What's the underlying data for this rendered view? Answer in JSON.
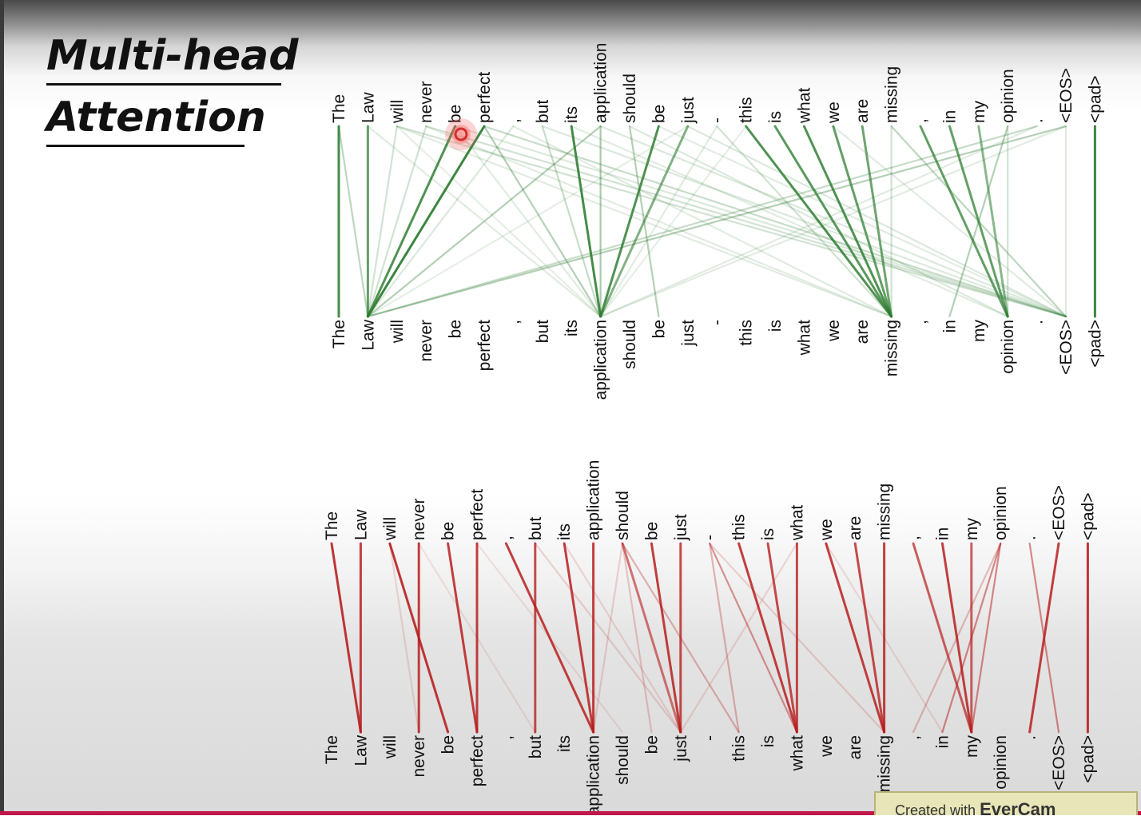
{
  "title": {
    "line1": "Multi-head",
    "line2": "Attention"
  },
  "tokens": [
    "The",
    "Law",
    "will",
    "never",
    "be",
    "perfect",
    ",",
    "but",
    "its",
    "application",
    "should",
    "be",
    "just",
    "-",
    "this",
    "is",
    "what",
    "we",
    "are",
    "missing",
    ",",
    "in",
    "my",
    "opinion",
    ".",
    "<EOS>",
    "<pad>"
  ],
  "colors": {
    "head_top": "#2e7d32",
    "head_bottom": "#b71c1c",
    "cursor": "#e53935"
  },
  "cursor_icon": "cursor-ring-icon",
  "heads": [
    {
      "name": "head-green",
      "color": "#2e7d32",
      "edges": [
        [
          0,
          0,
          0.9
        ],
        [
          0,
          1,
          0.3
        ],
        [
          1,
          1,
          0.75
        ],
        [
          2,
          1,
          0.2
        ],
        [
          3,
          1,
          0.2
        ],
        [
          4,
          1,
          0.85
        ],
        [
          5,
          1,
          0.95
        ],
        [
          5,
          9,
          0.35
        ],
        [
          6,
          1,
          0.15
        ],
        [
          7,
          9,
          0.25
        ],
        [
          8,
          9,
          0.9
        ],
        [
          9,
          1,
          0.35
        ],
        [
          9,
          9,
          0.4
        ],
        [
          10,
          11,
          0.35
        ],
        [
          11,
          9,
          0.85
        ],
        [
          12,
          9,
          0.6
        ],
        [
          13,
          19,
          0.2
        ],
        [
          14,
          19,
          0.85
        ],
        [
          15,
          19,
          0.8
        ],
        [
          16,
          19,
          0.85
        ],
        [
          17,
          19,
          0.75
        ],
        [
          18,
          19,
          0.7
        ],
        [
          19,
          19,
          0.2
        ],
        [
          19,
          25,
          0.3
        ],
        [
          20,
          23,
          0.75
        ],
        [
          21,
          23,
          0.75
        ],
        [
          22,
          23,
          0.55
        ],
        [
          23,
          21,
          0.35
        ],
        [
          23,
          23,
          0.2
        ],
        [
          24,
          1,
          0.25
        ],
        [
          25,
          1,
          0.35
        ],
        [
          25,
          25,
          0.15
        ],
        [
          26,
          26,
          0.95
        ],
        [
          2,
          25,
          0.2
        ],
        [
          3,
          25,
          0.2
        ],
        [
          5,
          25,
          0.25
        ],
        [
          4,
          25,
          0.15
        ],
        [
          7,
          25,
          0.15
        ],
        [
          10,
          23,
          0.15
        ],
        [
          12,
          25,
          0.15
        ],
        [
          2,
          19,
          0.12
        ],
        [
          3,
          19,
          0.12
        ],
        [
          9,
          25,
          0.15
        ],
        [
          11,
          25,
          0.12
        ],
        [
          6,
          19,
          0.12
        ],
        [
          8,
          23,
          0.12
        ],
        [
          4,
          9,
          0.12
        ],
        [
          24,
          9,
          0.12
        ],
        [
          13,
          9,
          0.12
        ],
        [
          25,
          9,
          0.12
        ],
        [
          14,
          9,
          0.1
        ],
        [
          17,
          25,
          0.12
        ],
        [
          1,
          9,
          0.12
        ],
        [
          2,
          9,
          0.1
        ],
        [
          12,
          1,
          0.1
        ]
      ]
    },
    {
      "name": "head-red",
      "color": "#b71c1c",
      "edges": [
        [
          0,
          1,
          0.9
        ],
        [
          1,
          1,
          0.85
        ],
        [
          2,
          4,
          0.9
        ],
        [
          3,
          3,
          0.85
        ],
        [
          4,
          5,
          0.85
        ],
        [
          5,
          5,
          0.85
        ],
        [
          6,
          9,
          0.85
        ],
        [
          7,
          7,
          0.8
        ],
        [
          8,
          9,
          0.85
        ],
        [
          9,
          9,
          0.85
        ],
        [
          10,
          12,
          0.6
        ],
        [
          10,
          14,
          0.3
        ],
        [
          11,
          12,
          0.85
        ],
        [
          12,
          12,
          0.8
        ],
        [
          13,
          16,
          0.45
        ],
        [
          13,
          14,
          0.3
        ],
        [
          14,
          16,
          0.85
        ],
        [
          15,
          16,
          0.8
        ],
        [
          16,
          16,
          0.8
        ],
        [
          17,
          19,
          0.85
        ],
        [
          18,
          19,
          0.8
        ],
        [
          19,
          19,
          0.85
        ],
        [
          20,
          22,
          0.7
        ],
        [
          21,
          22,
          0.85
        ],
        [
          22,
          22,
          0.7
        ],
        [
          23,
          21,
          0.5
        ],
        [
          23,
          22,
          0.5
        ],
        [
          24,
          25,
          0.5
        ],
        [
          25,
          24,
          0.85
        ],
        [
          26,
          26,
          0.9
        ],
        [
          7,
          12,
          0.15
        ],
        [
          10,
          11,
          0.2
        ],
        [
          10,
          9,
          0.15
        ],
        [
          13,
          19,
          0.15
        ],
        [
          16,
          12,
          0.12
        ],
        [
          23,
          20,
          0.25
        ],
        [
          2,
          3,
          0.12
        ],
        [
          8,
          12,
          0.12
        ],
        [
          3,
          7,
          0.08
        ],
        [
          5,
          10,
          0.08
        ],
        [
          17,
          21,
          0.1
        ]
      ]
    }
  ]
}
